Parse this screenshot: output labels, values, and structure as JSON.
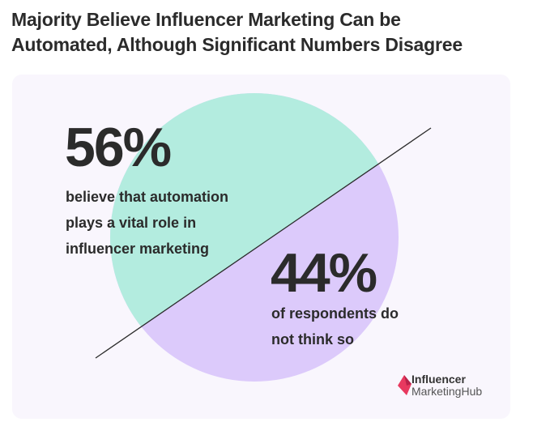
{
  "title_line1": "Majority Believe Influencer Marketing Can be",
  "title_line2": "Automated, Although Significant Numbers Disagree",
  "chart_data": {
    "type": "pie",
    "title": "Majority Believe Influencer Marketing Can be Automated, Although Significant Numbers Disagree",
    "categories": [
      "believe that automation plays a vital role in influencer marketing",
      "of respondents do not think so"
    ],
    "values": [
      56,
      44
    ],
    "labels": [
      "56%",
      "44%"
    ],
    "colors": [
      "#b3ecdf",
      "#dccafb"
    ],
    "legend": "none"
  },
  "yes": {
    "pct": "56%",
    "line1": "believe that automation",
    "line2": "plays a vital role in",
    "line3": "influencer marketing"
  },
  "no": {
    "pct": "44%",
    "line1": "of respondents do",
    "line2": "not think so"
  },
  "logo": {
    "line1": "Influencer",
    "line2a": "Marketing",
    "line2b": "Hub",
    "color": "#e8395f"
  }
}
